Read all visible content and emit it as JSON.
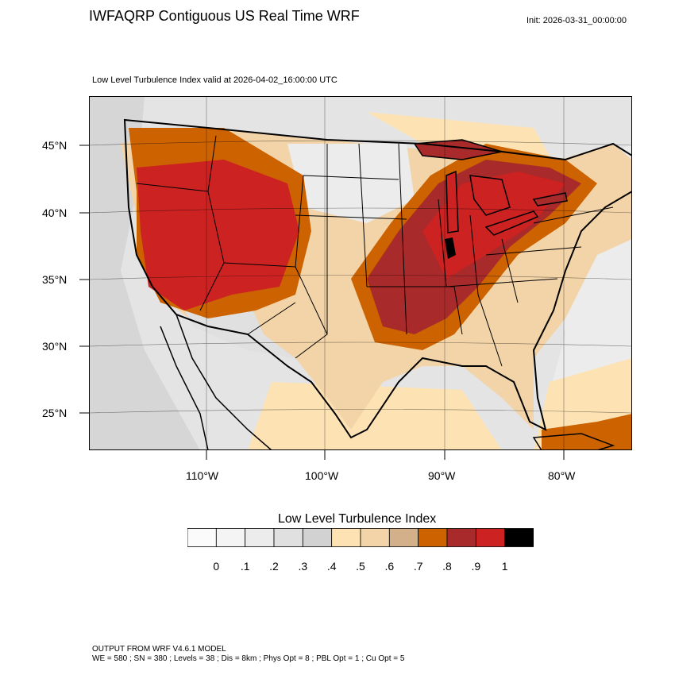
{
  "title": "IWFAQRP Contiguous US Real Time WRF",
  "init": "Init: 2026-03-31_00:00:00",
  "subtitle": "Low Level Turbulence Index valid at 2026-04-02_16:00:00 UTC",
  "lat_labels": [
    "45°N",
    "40°N",
    "35°N",
    "30°N",
    "25°N"
  ],
  "lon_labels": [
    "110°W",
    "100°W",
    "90°W",
    "80°W"
  ],
  "colorbar": {
    "title": "Low Level Turbulence Index",
    "ticks": [
      "0",
      ".1",
      ".2",
      ".3",
      ".4",
      ".5",
      ".6",
      ".7",
      ".8",
      ".9",
      "1"
    ],
    "colors": [
      "#fbfbfb",
      "#f4f4f4",
      "#ececec",
      "#e0e0e0",
      "#d2d2d2",
      "#fde3b4",
      "#f2d4a8",
      "#d4b08a",
      "#cc6200",
      "#a82a2a",
      "#cc2222",
      "#000000"
    ]
  },
  "footer": {
    "line1": "OUTPUT FROM WRF V4.6.1 MODEL",
    "line2": "WE = 580 ; SN = 380 ; Levels = 38 ; Dis = 8km ; Phys Opt = 8 ; PBL Opt = 1 ; Cu Opt = 5"
  }
}
